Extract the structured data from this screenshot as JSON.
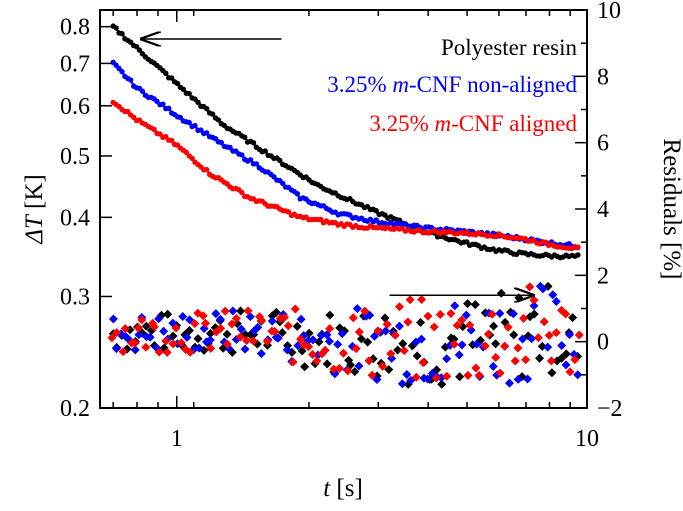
{
  "chart_data": {
    "type": "scatter",
    "title": "",
    "x": {
      "label_var": "t",
      "label_unit": "[s]",
      "scale": "log",
      "range": [
        0.65,
        10
      ],
      "ticks": [
        1,
        10
      ],
      "tick_labels": [
        "1",
        "10"
      ]
    },
    "y_left": {
      "label_var": "ΔT",
      "label_unit": "[K]",
      "scale": "log",
      "range": [
        0.2,
        0.85
      ],
      "ticks": [
        0.2,
        0.3,
        0.4,
        0.5,
        0.6,
        0.7,
        0.8
      ],
      "tick_labels": [
        "0.2",
        "0.3",
        "0.4",
        "0.5",
        "0.6",
        "0.7",
        "0.8"
      ]
    },
    "y_right": {
      "label": "Residuals [%]",
      "scale": "linear",
      "range": [
        -2,
        10
      ],
      "ticks": [
        -2,
        0,
        2,
        4,
        6,
        8,
        10
      ],
      "tick_labels": [
        "−2",
        "0",
        "2",
        "4",
        "6",
        "8",
        "10"
      ]
    },
    "series": [
      {
        "name": "Polyester resin",
        "color": "#000000",
        "axis": "left",
        "curve": [
          [
            0.7,
            0.8
          ],
          [
            0.8,
            0.74
          ],
          [
            1.0,
            0.65
          ],
          [
            1.3,
            0.56
          ],
          [
            1.7,
            0.5
          ],
          [
            2.2,
            0.45
          ],
          [
            3.0,
            0.41
          ],
          [
            4.0,
            0.38
          ],
          [
            5.0,
            0.365
          ],
          [
            6.0,
            0.355
          ],
          [
            7.0,
            0.35
          ],
          [
            8.0,
            0.348
          ],
          [
            9.0,
            0.347
          ],
          [
            9.5,
            0.347
          ]
        ]
      },
      {
        "name": "3.25% m-CNF non-aligned",
        "color": "#0000ff",
        "axis": "left",
        "curve": [
          [
            0.7,
            0.7
          ],
          [
            0.8,
            0.64
          ],
          [
            1.0,
            0.58
          ],
          [
            1.3,
            0.52
          ],
          [
            1.6,
            0.48
          ],
          [
            2.0,
            0.43
          ],
          [
            2.5,
            0.405
          ],
          [
            3.0,
            0.395
          ],
          [
            4.0,
            0.385
          ],
          [
            5.0,
            0.38
          ],
          [
            6.0,
            0.375
          ],
          [
            7.0,
            0.37
          ],
          [
            8.0,
            0.365
          ],
          [
            9.5,
            0.36
          ]
        ]
      },
      {
        "name": "3.25% m-CNF aligned",
        "color": "#ff0000",
        "axis": "left",
        "curve": [
          [
            0.7,
            0.61
          ],
          [
            0.8,
            0.57
          ],
          [
            1.0,
            0.52
          ],
          [
            1.2,
            0.47
          ],
          [
            1.5,
            0.43
          ],
          [
            2.0,
            0.4
          ],
          [
            2.5,
            0.39
          ],
          [
            3.0,
            0.385
          ],
          [
            4.0,
            0.38
          ],
          [
            5.0,
            0.378
          ],
          [
            6.0,
            0.375
          ],
          [
            7.0,
            0.37
          ],
          [
            8.0,
            0.363
          ],
          [
            9.5,
            0.357
          ]
        ]
      }
    ],
    "residuals": {
      "axis": "right",
      "marker": "diamond",
      "band": [
        [
          0.7,
          -0.3,
          0.8
        ],
        [
          1.5,
          -0.4,
          1.0
        ],
        [
          2.5,
          -1.0,
          1.0
        ],
        [
          3.5,
          -1.3,
          1.3
        ],
        [
          5.0,
          -1.4,
          1.4
        ],
        [
          6.0,
          -1.3,
          1.5
        ],
        [
          7.0,
          -1.2,
          1.7
        ],
        [
          8.0,
          -1.0,
          1.8
        ],
        [
          9.5,
          -1.2,
          1.0
        ]
      ]
    },
    "legend": {
      "placement": "top-right",
      "entries": [
        {
          "text": "Polyester resin",
          "color": "#000000"
        },
        {
          "text_pre": "3.25% ",
          "text_em": "m",
          "text_post": "-CNF non-aligned",
          "color": "#0000ff"
        },
        {
          "text_pre": "3.25% ",
          "text_em": "m",
          "text_post": "-CNF aligned",
          "color": "#ff0000"
        }
      ]
    },
    "annotations": [
      {
        "type": "arrow",
        "points_to": "left-axis",
        "from_t": 1.8,
        "to_t": 0.82,
        "at_dT": 0.765
      },
      {
        "type": "arrow",
        "points_to": "right-axis",
        "from_t": 3.3,
        "to_t": 7.4,
        "at_res": 1.4
      }
    ],
    "grid": false
  }
}
